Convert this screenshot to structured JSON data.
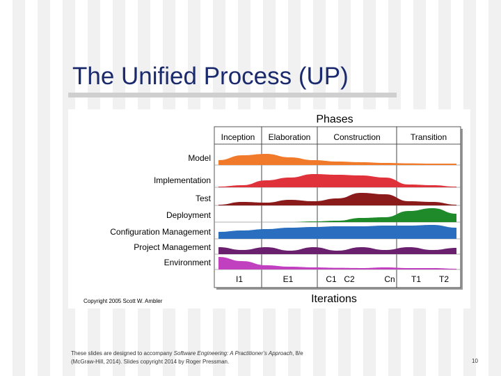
{
  "slide": {
    "title": "The Unified Process (UP)",
    "footer_line1_pre": "These slides are designed to accompany ",
    "footer_book": "Software Engineering: A Practitioner’s Approach",
    "footer_line1_post": ", 8/e",
    "footer_line2": "(McGraw-Hill, 2014). Slides copyright 2014 by Roger Pressman.",
    "page_number": "10"
  },
  "diagram": {
    "header": "Phases",
    "footer_label": "Iterations",
    "copyright": "Copyright 2005 Scott W. Ambler",
    "phases": [
      "Inception",
      "Elaboration",
      "Construction",
      "Transition"
    ],
    "iterations": [
      "I1",
      "E1",
      "C1",
      "C2",
      "Cn",
      "T1",
      "T2"
    ],
    "disciplines": [
      {
        "name": "Model",
        "color": "#f07a2a",
        "profile": [
          0.35,
          0.7,
          0.8,
          0.55,
          0.35,
          0.25,
          0.2,
          0.15,
          0.12,
          0.1,
          0.1
        ]
      },
      {
        "name": "Implementation",
        "color": "#e0323a",
        "profile": [
          0.05,
          0.15,
          0.5,
          0.7,
          0.95,
          0.9,
          0.85,
          0.7,
          0.2,
          0.15,
          0.05
        ]
      },
      {
        "name": "Test",
        "color": "#8b1a1a",
        "profile": [
          0.05,
          0.25,
          0.2,
          0.4,
          0.3,
          0.5,
          0.9,
          0.8,
          0.3,
          0.25,
          0.05
        ]
      },
      {
        "name": "Deployment",
        "color": "#1e8a2a",
        "profile": [
          0,
          0,
          0,
          0,
          0.05,
          0.1,
          0.3,
          0.35,
          0.8,
          1,
          0.6
        ]
      },
      {
        "name": "Configuration Management",
        "color": "#2a6fbf",
        "profile": [
          0.5,
          0.6,
          0.7,
          0.8,
          0.85,
          0.9,
          0.9,
          0.95,
          0.95,
          1,
          0.8
        ]
      },
      {
        "name": "Project Management",
        "color": "#6a1f6f",
        "profile": [
          0.5,
          0.3,
          0.5,
          0.25,
          0.5,
          0.25,
          0.5,
          0.3,
          0.5,
          0.3,
          0.45
        ]
      },
      {
        "name": "Environment",
        "color": "#c040c0",
        "profile": [
          0.9,
          0.6,
          0.3,
          0.2,
          0.15,
          0.12,
          0.1,
          0.15,
          0.1,
          0.1,
          0.05
        ]
      }
    ],
    "colors": {
      "frame": "#888888",
      "grid": "#444444",
      "text": "#000000"
    }
  }
}
